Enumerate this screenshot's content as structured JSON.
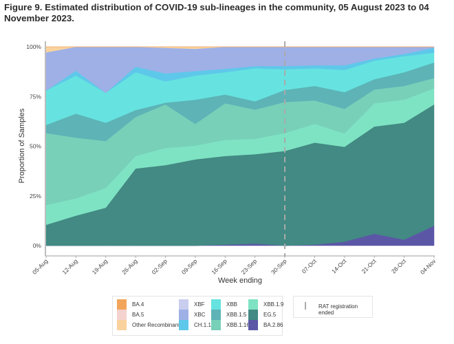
{
  "title": "Figure 9. Estimated distribution of COVID-19 sub-lineages in the community, 05 August 2023 to 04 November 2023.",
  "chart_data": {
    "type": "area",
    "stacked": true,
    "title": "Figure 9. Estimated distribution of COVID-19 sub-lineages in the community, 05 August 2023 to 04 November 2023.",
    "xlabel": "Week ending",
    "ylabel": "Proportion of Samples",
    "ylim": [
      0,
      100
    ],
    "yticks": [
      "0%",
      "25%",
      "50%",
      "75%",
      "100%"
    ],
    "ytick_values": [
      0,
      25,
      50,
      75,
      100
    ],
    "categories": [
      "05-Aug",
      "12-Aug",
      "19-Aug",
      "26-Aug",
      "02-Sep",
      "09-Sep",
      "16-Sep",
      "23-Sep",
      "30-Sep",
      "07-Oct",
      "14-Oct",
      "21-Oct",
      "28-Oct",
      "04-Nov"
    ],
    "series": [
      {
        "name": "BA.2.86",
        "color": "#5b57a6",
        "values": [
          0,
          0,
          0,
          0,
          0,
          0,
          0.5,
          1,
          0,
          0.5,
          2,
          6,
          3,
          10
        ]
      },
      {
        "name": "EG.5",
        "color": "#428a83",
        "values": [
          10.5,
          15.1,
          19.1,
          38.8,
          40.5,
          43.4,
          44.6,
          45,
          47.6,
          51.3,
          47.7,
          53.9,
          58.8,
          61
        ]
      },
      {
        "name": "XBB.1.9",
        "color": "#7ee3c3",
        "values": [
          9.9,
          8.7,
          9.9,
          6.3,
          8.6,
          6.9,
          8.1,
          7.7,
          9,
          9.4,
          6.7,
          11.7,
          11.6,
          8.1
        ]
      },
      {
        "name": "XBB.1.16",
        "color": "#78d0b9",
        "values": [
          36.2,
          30.5,
          23.6,
          19.6,
          21.9,
          10.9,
          18.4,
          14.7,
          15.6,
          11.8,
          12.4,
          6.9,
          6.9,
          5.2
        ]
      },
      {
        "name": "XBB.1.5",
        "color": "#5db3b6",
        "values": [
          4.1,
          12.1,
          9.2,
          3.5,
          0.9,
          12.2,
          4.4,
          4.2,
          6.1,
          7.3,
          8.4,
          5.2,
          6.9,
          7.8
        ]
      },
      {
        "name": "XBB",
        "color": "#66e3e0",
        "values": [
          17.3,
          19.1,
          15,
          19,
          10.7,
          12.1,
          11.2,
          16.6,
          10.4,
          8.9,
          11.1,
          9.3,
          8.1,
          4.9
        ]
      },
      {
        "name": "CH.1.1",
        "color": "#5ec8ea",
        "values": [
          0,
          2.5,
          0,
          2.8,
          4,
          2.3,
          1.7,
          1.1,
          1.6,
          1.5,
          2.4,
          1.1,
          1.1,
          2.5
        ]
      },
      {
        "name": "XBC",
        "color": "#9eb0e6",
        "values": [
          19.2,
          12,
          23.2,
          10,
          12.9,
          11.2,
          11.1,
          9.7,
          9.7,
          9.3,
          9.3,
          5.9,
          3.6,
          0.5
        ]
      },
      {
        "name": "XBF",
        "color": "#c9cdee",
        "values": [
          0,
          0,
          0,
          0,
          0,
          0,
          0,
          0,
          0,
          0,
          0,
          0,
          0,
          0
        ]
      },
      {
        "name": "Other Recombinant",
        "color": "#f9d29d",
        "values": [
          2.8,
          0,
          0,
          0,
          0.5,
          1,
          0,
          0,
          0,
          0,
          0,
          0,
          0,
          0
        ]
      },
      {
        "name": "BA.5",
        "color": "#f3d2cf",
        "values": [
          0,
          0,
          0,
          0,
          0,
          0,
          0,
          0,
          0,
          0,
          0,
          0,
          0,
          0
        ]
      },
      {
        "name": "BA.4",
        "color": "#f2a55a",
        "values": [
          0,
          0,
          0,
          0,
          0,
          0,
          0,
          0,
          0,
          0,
          0,
          0,
          0,
          0
        ]
      }
    ],
    "annotations": [
      {
        "type": "vline",
        "x": "30-Sep",
        "style": "dashed",
        "label": "RAT registration ended"
      }
    ],
    "legend": {
      "position": "bottom",
      "items": [
        "BA.4",
        "BA.5",
        "Other Recombinant",
        "XBF",
        "XBC",
        "CH.1.1",
        "XBB",
        "XBB.1.5",
        "XBB.1.16",
        "XBB.1.9",
        "EG.5",
        "BA.2.86"
      ]
    },
    "grid": false
  },
  "legend_extra": {
    "label": "RAT registration ended",
    "color": "#aaaaaa"
  }
}
